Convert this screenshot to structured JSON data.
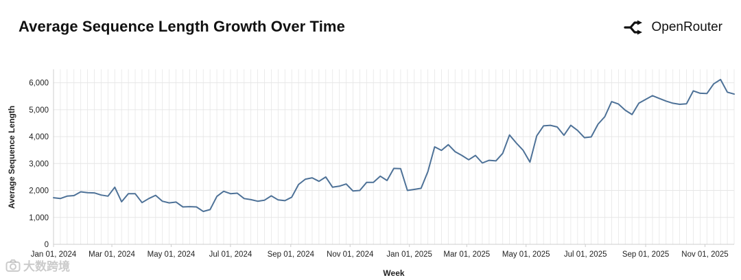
{
  "header": {
    "title": "Average Sequence Length Growth Over Time",
    "brand_name": "OpenRouter",
    "brand_icon": "openrouter-logo-icon"
  },
  "watermark": {
    "text": "大数跨境",
    "icon": "camera-icon"
  },
  "colors": {
    "line": "#4d7197",
    "grid": "#e6e6e6",
    "axis": "#cccccc"
  },
  "chart_data": {
    "type": "line",
    "title": "Average Sequence Length Growth Over Time",
    "xlabel": "Week",
    "ylabel": "Average Sequence Length",
    "ylim": [
      0,
      6500
    ],
    "yticks": [
      0,
      1000,
      2000,
      3000,
      4000,
      5000,
      6000
    ],
    "ytick_labels": [
      "0",
      "1,000",
      "2,000",
      "3,000",
      "4,000",
      "5,000",
      "6,000"
    ],
    "xrange": [
      "2024-01-01",
      "2025-12-01"
    ],
    "xticks": [
      "2024-01-01",
      "2024-03-01",
      "2024-05-01",
      "2024-07-01",
      "2024-09-01",
      "2024-11-01",
      "2025-01-01",
      "2025-03-01",
      "2025-05-01",
      "2025-07-01",
      "2025-09-01",
      "2025-11-01"
    ],
    "xtick_labels": [
      "Jan 01, 2024",
      "Mar 01, 2024",
      "May 01, 2024",
      "Jul 01, 2024",
      "Sep 01, 2024",
      "Nov 01, 2024",
      "Jan 01, 2025",
      "Mar 01, 2025",
      "May 01, 2025",
      "Jul 01, 2025",
      "Sep 01, 2025",
      "Nov 01, 2025"
    ],
    "grid": true,
    "series": [
      {
        "name": "Average Sequence Length",
        "x": [
          "2024-01-01",
          "2024-01-08",
          "2024-01-15",
          "2024-01-22",
          "2024-01-29",
          "2024-02-05",
          "2024-02-12",
          "2024-02-19",
          "2024-02-26",
          "2024-03-04",
          "2024-03-11",
          "2024-03-18",
          "2024-03-25",
          "2024-04-01",
          "2024-04-08",
          "2024-04-15",
          "2024-04-22",
          "2024-04-29",
          "2024-05-06",
          "2024-05-13",
          "2024-05-20",
          "2024-05-27",
          "2024-06-03",
          "2024-06-10",
          "2024-06-17",
          "2024-06-24",
          "2024-07-01",
          "2024-07-08",
          "2024-07-15",
          "2024-07-22",
          "2024-07-29",
          "2024-08-05",
          "2024-08-12",
          "2024-08-19",
          "2024-08-26",
          "2024-09-02",
          "2024-09-09",
          "2024-09-16",
          "2024-09-23",
          "2024-09-30",
          "2024-10-07",
          "2024-10-14",
          "2024-10-21",
          "2024-10-28",
          "2024-11-04",
          "2024-11-11",
          "2024-11-18",
          "2024-11-25",
          "2024-12-02",
          "2024-12-09",
          "2024-12-16",
          "2024-12-23",
          "2024-12-30",
          "2025-01-06",
          "2025-01-13",
          "2025-01-20",
          "2025-01-27",
          "2025-02-03",
          "2025-02-10",
          "2025-02-17",
          "2025-02-24",
          "2025-03-03",
          "2025-03-10",
          "2025-03-17",
          "2025-03-24",
          "2025-03-31",
          "2025-04-07",
          "2025-04-14",
          "2025-04-21",
          "2025-04-28",
          "2025-05-05",
          "2025-05-12",
          "2025-05-19",
          "2025-05-26",
          "2025-06-02",
          "2025-06-09",
          "2025-06-16",
          "2025-06-23",
          "2025-06-30",
          "2025-07-07",
          "2025-07-14",
          "2025-07-21",
          "2025-07-28",
          "2025-08-04",
          "2025-08-11",
          "2025-08-18",
          "2025-08-25",
          "2025-09-01",
          "2025-09-08",
          "2025-09-15",
          "2025-09-22",
          "2025-09-29",
          "2025-10-06",
          "2025-10-13",
          "2025-10-20",
          "2025-10-27",
          "2025-11-03",
          "2025-11-10",
          "2025-11-17",
          "2025-11-24",
          "2025-12-01"
        ],
        "values": [
          1730,
          1700,
          1790,
          1810,
          1950,
          1920,
          1910,
          1830,
          1790,
          2120,
          1580,
          1880,
          1880,
          1550,
          1700,
          1820,
          1600,
          1540,
          1570,
          1390,
          1400,
          1390,
          1220,
          1290,
          1780,
          1970,
          1880,
          1900,
          1700,
          1660,
          1600,
          1640,
          1800,
          1650,
          1620,
          1750,
          2220,
          2420,
          2470,
          2340,
          2500,
          2120,
          2160,
          2240,
          1980,
          2000,
          2300,
          2300,
          2530,
          2370,
          2820,
          2810,
          2000,
          2040,
          2080,
          2700,
          3620,
          3490,
          3700,
          3440,
          3300,
          3140,
          3300,
          3020,
          3120,
          3100,
          3380,
          4060,
          3760,
          3490,
          3050,
          4030,
          4400,
          4420,
          4360,
          4050,
          4420,
          4230,
          3960,
          3990,
          4460,
          4740,
          5300,
          5210,
          4980,
          4820,
          5240,
          5380,
          5520,
          5420,
          5320,
          5240,
          5200,
          5220,
          5700,
          5610,
          5600,
          5960,
          6120,
          5650,
          5580
        ]
      }
    ]
  }
}
